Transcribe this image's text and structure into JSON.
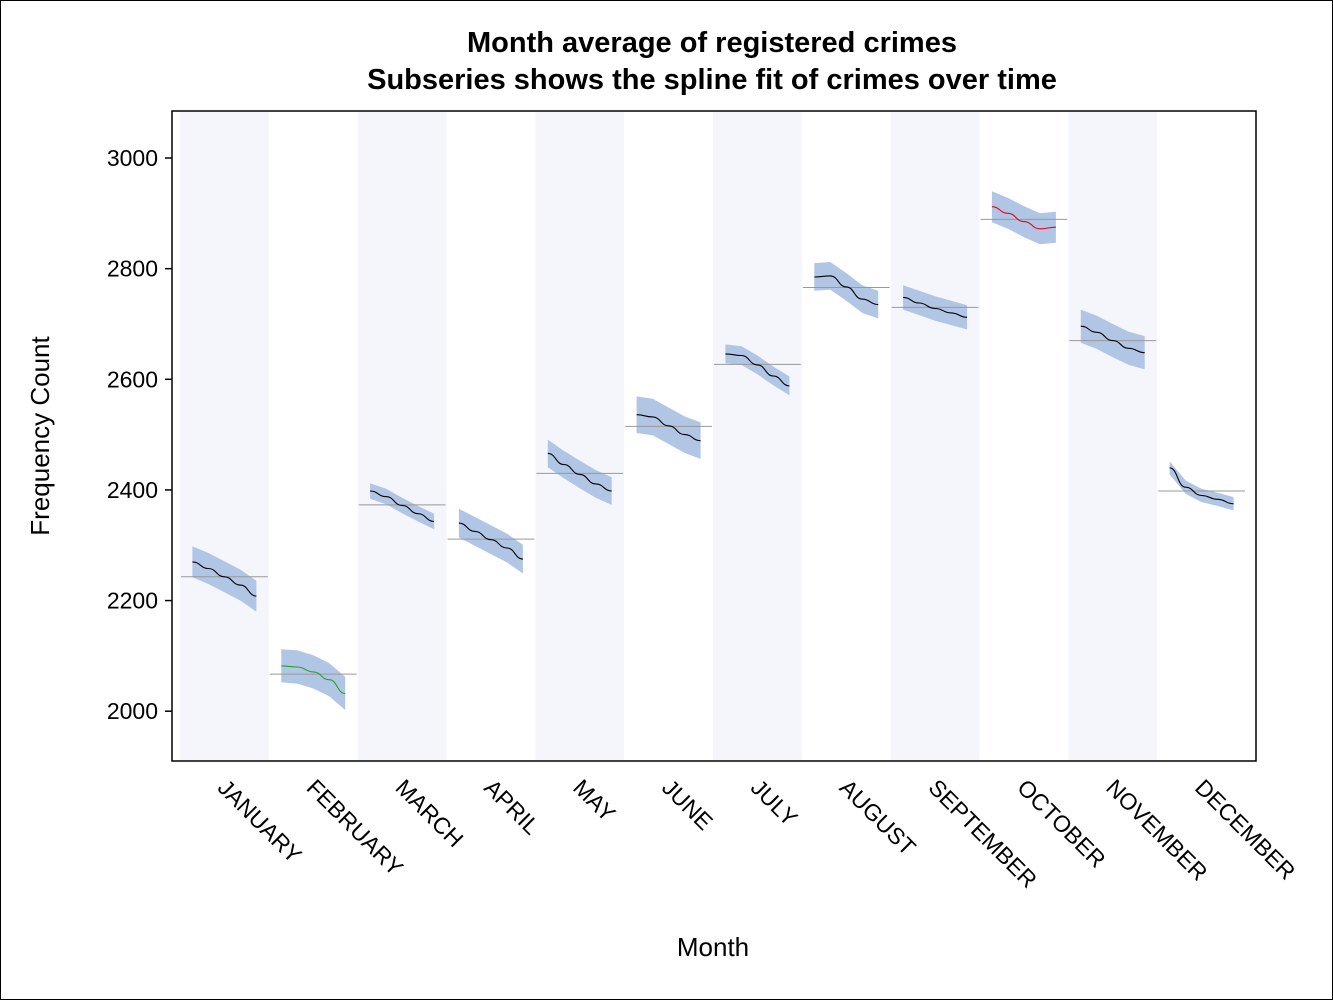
{
  "chart_data": {
    "type": "line",
    "title": "Month average of registered crimes",
    "subtitle": "Subseries shows the spline fit of crimes over time",
    "xlabel": "Month",
    "ylabel": "Frequency Count",
    "ylim": [
      1910,
      3085
    ],
    "yticks": [
      2000,
      2200,
      2400,
      2600,
      2800,
      3000
    ],
    "grid": false,
    "band_color": "#f4f6fb",
    "confidence_band_color": "#b0c6e4",
    "mean_line_color": "#999999",
    "categories": [
      "JANUARY",
      "FEBRUARY",
      "MARCH",
      "APRIL",
      "MAY",
      "JUNE",
      "JULY",
      "AUGUST",
      "SEPTEMBER",
      "OCTOBER",
      "NOVEMBER",
      "DECEMBER"
    ],
    "month_average": [
      2243,
      2067,
      2373,
      2311,
      2430,
      2515,
      2627,
      2766,
      2730,
      2889,
      2670,
      2398
    ],
    "series": [
      {
        "month": "JANUARY",
        "color": "#000000",
        "spline": [
          2270,
          2258,
          2243,
          2228,
          2208
        ],
        "band_halfwidth": 28
      },
      {
        "month": "FEBRUARY",
        "color": "#2ca02c",
        "spline": [
          2082,
          2080,
          2071,
          2057,
          2032
        ],
        "band_halfwidth": 30
      },
      {
        "month": "MARCH",
        "color": "#000000",
        "spline": [
          2398,
          2388,
          2372,
          2357,
          2343
        ],
        "band_halfwidth": 14
      },
      {
        "month": "APRIL",
        "color": "#000000",
        "spline": [
          2340,
          2325,
          2310,
          2295,
          2275
        ],
        "band_halfwidth": 26
      },
      {
        "month": "MAY",
        "color": "#000000",
        "spline": [
          2466,
          2446,
          2428,
          2411,
          2398
        ],
        "band_halfwidth": 25
      },
      {
        "month": "JUNE",
        "color": "#000000",
        "spline": [
          2536,
          2532,
          2516,
          2500,
          2489
        ],
        "band_halfwidth": 33
      },
      {
        "month": "JULY",
        "color": "#000000",
        "spline": [
          2646,
          2643,
          2626,
          2606,
          2588
        ],
        "band_halfwidth": 17
      },
      {
        "month": "AUGUST",
        "color": "#000000",
        "spline": [
          2785,
          2787,
          2767,
          2745,
          2735
        ],
        "band_halfwidth": 25
      },
      {
        "month": "SEPTEMBER",
        "color": "#000000",
        "spline": [
          2748,
          2738,
          2728,
          2720,
          2712
        ],
        "band_halfwidth": 22
      },
      {
        "month": "OCTOBER",
        "color": "#e8001c",
        "spline": [
          2912,
          2900,
          2885,
          2872,
          2875
        ],
        "band_halfwidth": 28
      },
      {
        "month": "NOVEMBER",
        "color": "#000000",
        "spline": [
          2696,
          2685,
          2670,
          2656,
          2648
        ],
        "band_halfwidth": 30
      },
      {
        "month": "DECEMBER",
        "color": "#000000",
        "spline": [
          2440,
          2405,
          2390,
          2383,
          2375
        ],
        "band_halfwidth": 12
      }
    ]
  }
}
